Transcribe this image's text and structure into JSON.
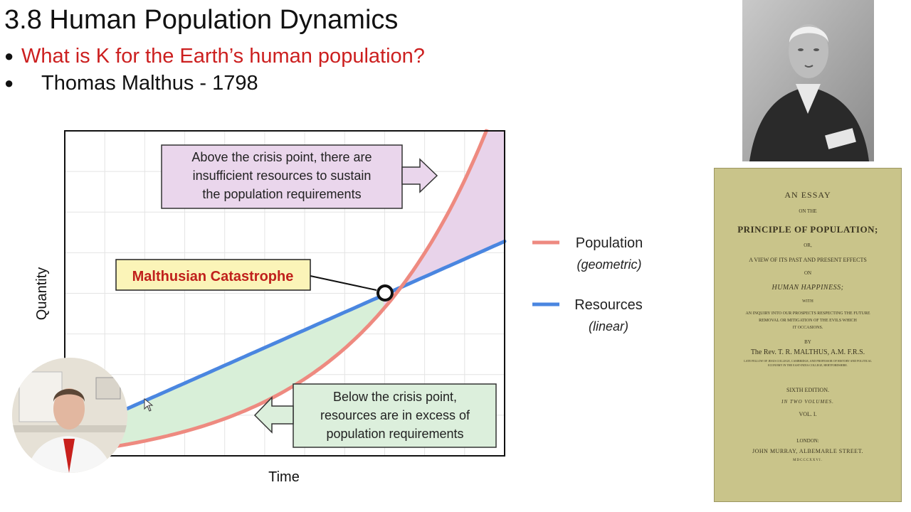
{
  "slide": {
    "title": "3.8 Human Population Dynamics",
    "bullets": [
      {
        "marker": "●",
        "text": "What is K for the Earth’s human population?"
      },
      {
        "marker": "●",
        "text": "Thomas Malthus - 1798"
      }
    ]
  },
  "chart_data": {
    "type": "line",
    "xlabel": "Time",
    "ylabel": "Quantity",
    "series": [
      {
        "name": "Population",
        "subtitle": "(geometric)",
        "color": "#ee8a80",
        "shape": "geometric"
      },
      {
        "name": "Resources",
        "subtitle": "(linear)",
        "color": "#4a86e0",
        "shape": "linear"
      }
    ],
    "annotations": {
      "crisis_label": "Malthusian Catastrophe",
      "above_text": [
        "Above the crisis point, there are",
        "insufficient resources to sustain",
        "the population requirements"
      ],
      "below_text": [
        "Below the crisis point,",
        "resources are in excess of",
        "population requirements"
      ]
    },
    "grid": true,
    "legend_position": "right",
    "colors": {
      "deficit_fill": "#e8d3ea",
      "surplus_fill": "#d8efd8",
      "crisis_label_bg": "#fbf4b8",
      "crisis_label_text": "#c0201c"
    }
  },
  "book": {
    "line1": "AN ESSAY",
    "line2": "ON THE",
    "line3": "PRINCIPLE OF POPULATION;",
    "line4": "OR,",
    "line5": "A VIEW OF ITS PAST AND PRESENT EFFECTS",
    "line6": "ON",
    "line7": "HUMAN HAPPINESS;",
    "line8": "WITH",
    "line9": "AN INQUIRY INTO OUR PROSPECTS RESPECTING THE FUTURE",
    "line10": "REMOVAL OR MITIGATION OF THE EVILS WHICH",
    "line11": "IT OCCASIONS.",
    "line12": "BY",
    "line13": "The Rev. T. R. MALTHUS, A.M. F.R.S.",
    "line14": "LATE FELLOW OF JESUS COLLEGE, CAMBRIDGE, AND PROFESSOR OF HISTORY AND POLITICAL",
    "line15": "ECONOMY IN THE EAST-INDIA COLLEGE, HERTFORDSHIRE.",
    "line16": "SIXTH EDITION.",
    "line17": "IN TWO VOLUMES.",
    "line18": "VOL. I.",
    "line19": "LONDON:",
    "line20": "JOHN MURRAY, ALBEMARLE STREET.",
    "line21": "MDCCCXXVI."
  }
}
